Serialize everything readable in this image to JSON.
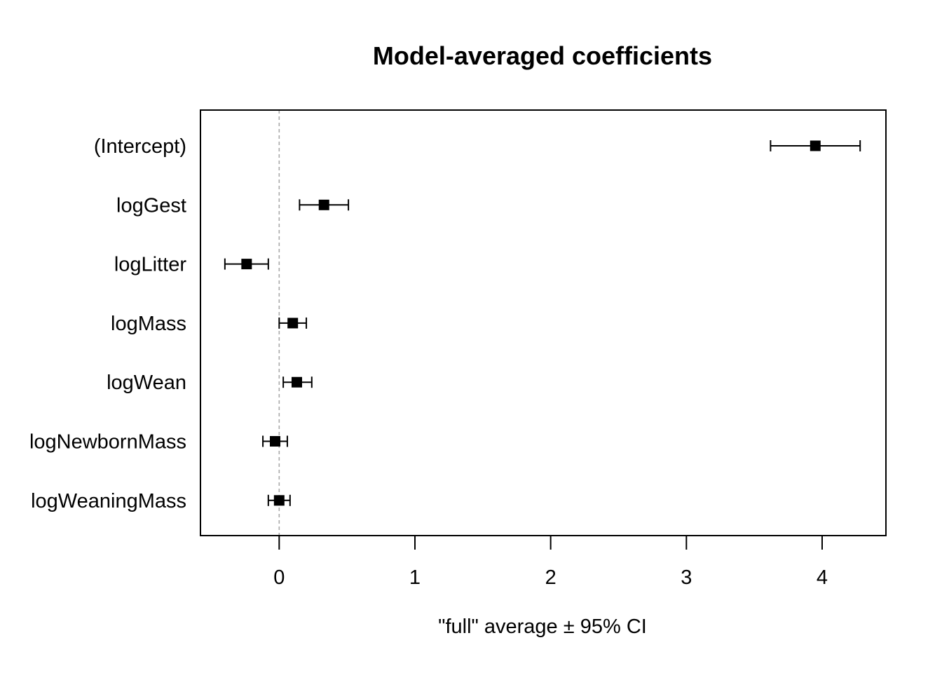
{
  "chart_data": {
    "type": "scatter",
    "title": "Model-averaged coefficients",
    "xlabel": "\"full\" average  ± 95% CI",
    "ylabel": "",
    "xlim": [
      -0.58,
      4.47
    ],
    "xticks": [
      0,
      1,
      2,
      3,
      4
    ],
    "reference_line": {
      "x": 0,
      "style": "dashed",
      "color": "#aaaaaa"
    },
    "grid": false,
    "legend": "none",
    "marker": "filled-square",
    "colors": {
      "points": "#000000",
      "axes": "#000000"
    },
    "categories": [
      "(Intercept)",
      "logGest",
      "logLitter",
      "logMass",
      "logWean",
      "logNewbornMass",
      "logWeaningMass"
    ],
    "series": [
      {
        "estimate": [
          3.95,
          0.33,
          -0.24,
          0.1,
          0.13,
          -0.03,
          0.0
        ],
        "ci_lower": [
          3.62,
          0.15,
          -0.4,
          0.0,
          0.03,
          -0.12,
          -0.08
        ],
        "ci_upper": [
          4.28,
          0.51,
          -0.08,
          0.2,
          0.24,
          0.06,
          0.08
        ]
      }
    ]
  }
}
